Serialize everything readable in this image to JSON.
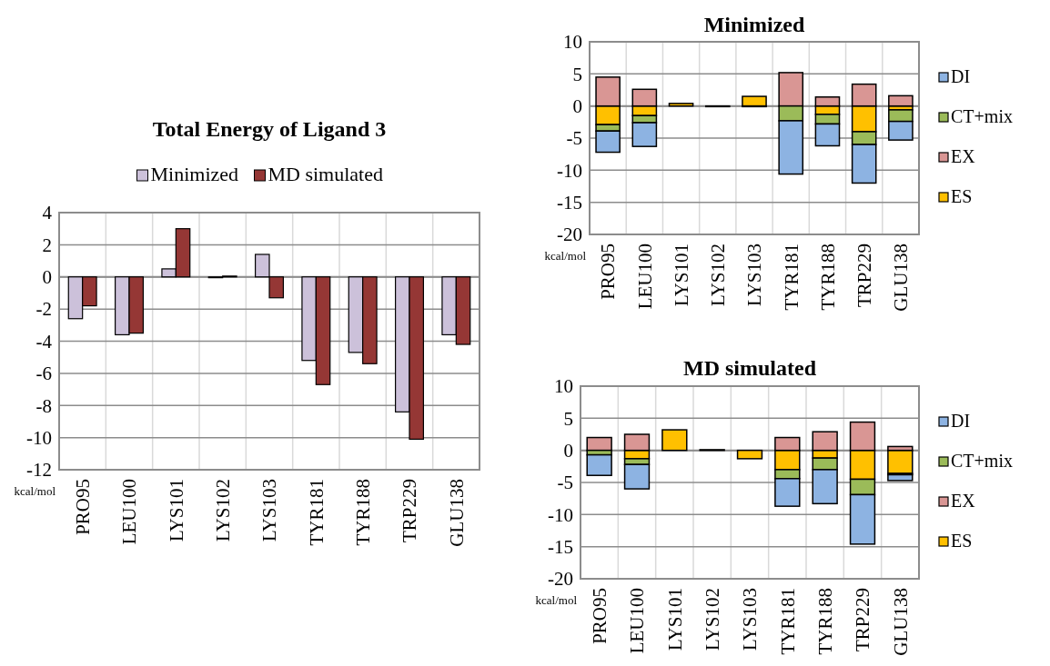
{
  "chart_data": [
    {
      "type": "bar",
      "title": "Total Energy of Ligand 3",
      "categories": [
        "PRO95",
        "LEU100",
        "LYS101",
        "LYS102",
        "LYS103",
        "TYR181",
        "TYR188",
        "TRP229",
        "GLU138"
      ],
      "series": [
        {
          "name": "Minimized",
          "color": "#ccc1da",
          "values": [
            -2.6,
            -3.6,
            0.5,
            -0.05,
            1.4,
            -5.2,
            -4.7,
            -8.4,
            -3.6
          ]
        },
        {
          "name": "MD simulated",
          "color": "#953735",
          "values": [
            -1.8,
            -3.5,
            3.0,
            0.05,
            -1.3,
            -6.7,
            -5.4,
            -10.1,
            -4.2
          ]
        }
      ],
      "ylim": [
        -12,
        4
      ],
      "yticks": [
        -12,
        -10,
        -8,
        -6,
        -4,
        -2,
        0,
        2,
        4
      ],
      "grid": true,
      "legend": "top",
      "annotations": [
        "kcal/mol"
      ]
    },
    {
      "type": "bar",
      "title": "Minimized",
      "stacked": true,
      "categories": [
        "PRO95",
        "LEU100",
        "LYS101",
        "LYS102",
        "LYS103",
        "TYR181",
        "TYR188",
        "TRP229",
        "GLU138"
      ],
      "series": [
        {
          "name": "ES",
          "color": "#ffc000",
          "values": [
            -2.9,
            -1.5,
            0.4,
            -0.1,
            1.5,
            null,
            -1.3,
            -4.0,
            -0.6
          ]
        },
        {
          "name": "EX",
          "color": "#d99694",
          "values": [
            4.5,
            2.6,
            0,
            0,
            0,
            5.2,
            1.4,
            3.4,
            1.6
          ]
        },
        {
          "name": "CT+mix",
          "color": "#9bbb59",
          "values": [
            -1.0,
            -1.1,
            0,
            0,
            0,
            -2.3,
            -1.5,
            -2.0,
            -1.8
          ]
        },
        {
          "name": "DI",
          "color": "#8db3e2",
          "values": [
            -3.3,
            -3.7,
            0,
            0,
            -0.1,
            -8.3,
            -3.4,
            -6.0,
            -2.9
          ]
        }
      ],
      "ylim": [
        -20,
        10
      ],
      "yticks": [
        -20,
        -15,
        -10,
        -5,
        0,
        5,
        10
      ],
      "grid": true,
      "legend": "right",
      "annotations": [
        "kcal/mol"
      ]
    },
    {
      "type": "bar",
      "title": "MD simulated",
      "stacked": true,
      "categories": [
        "PRO95",
        "LEU100",
        "LYS101",
        "LYS102",
        "LYS103",
        "TYR181",
        "TYR188",
        "TRP229",
        "GLU138"
      ],
      "series": [
        {
          "name": "ES",
          "color": "#ffc000",
          "values": [
            0,
            -1.3,
            3.2,
            0.1,
            -1.3,
            -3.0,
            -1.2,
            -4.5,
            -3.6
          ]
        },
        {
          "name": "EX",
          "color": "#d99694",
          "values": [
            2.0,
            2.5,
            0,
            0,
            0,
            2.0,
            2.9,
            4.4,
            0.6
          ]
        },
        {
          "name": "CT+mix",
          "color": "#9bbb59",
          "values": [
            -0.7,
            -0.9,
            0,
            0,
            0,
            -1.4,
            -1.8,
            -2.4,
            -0.2
          ]
        },
        {
          "name": "DI",
          "color": "#8db3e2",
          "values": [
            -3.2,
            -3.8,
            0,
            0,
            0,
            -4.3,
            -5.3,
            -7.7,
            -0.9
          ]
        }
      ],
      "ylim": [
        -20,
        10
      ],
      "yticks": [
        -20,
        -15,
        -10,
        -5,
        0,
        5,
        10
      ],
      "grid": true,
      "legend": "right",
      "annotations": [
        "kcal/mol"
      ]
    }
  ]
}
